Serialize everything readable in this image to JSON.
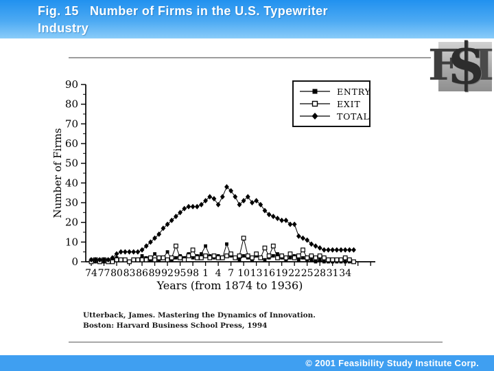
{
  "header": {
    "title_line1": "Fig. 15   Number of Firms in the U.S. Typewriter",
    "title_line2": "Industry"
  },
  "logo": {
    "letters": [
      "F",
      "$",
      "I"
    ]
  },
  "chart_data": {
    "type": "line",
    "title": "Number of Firms in the U.S. Typewriter Industry",
    "xlabel": "Years (from 1874 to 1936)",
    "ylabel": "Number of Firms",
    "x_start_year": 1874,
    "x_end_year": 1936,
    "x_tick_labels": [
      "74",
      "77",
      "80",
      "83",
      "86",
      "89",
      "92",
      "95",
      "98",
      "1",
      "4",
      "7",
      "10",
      "13",
      "16",
      "19",
      "22",
      "25",
      "28",
      "31",
      "34"
    ],
    "y_ticks": [
      0,
      10,
      20,
      30,
      40,
      50,
      60,
      70,
      80,
      90
    ],
    "ylim": [
      0,
      90
    ],
    "grid": false,
    "legend_position": "top-right",
    "line_color": "#000000",
    "series": [
      {
        "name": "ENTRY",
        "marker": "filled-square",
        "color": "#000000",
        "values": [
          1,
          0,
          1,
          0,
          1,
          1,
          2,
          1,
          1,
          0,
          1,
          1,
          3,
          2,
          1,
          4,
          1,
          2,
          5,
          1,
          2,
          3,
          2,
          4,
          2,
          3,
          4,
          8,
          3,
          2,
          3,
          2,
          9,
          3,
          2,
          1,
          3,
          2,
          1,
          3,
          2,
          1,
          2,
          3,
          4,
          2,
          1,
          2,
          3,
          1,
          2,
          1,
          1,
          0,
          1,
          0,
          0,
          0,
          0,
          0,
          0,
          0,
          0
        ]
      },
      {
        "name": "EXIT",
        "marker": "open-square",
        "color": "#000000",
        "values": [
          0,
          1,
          0,
          1,
          0,
          0,
          1,
          1,
          1,
          0,
          1,
          1,
          1,
          1,
          2,
          1,
          2,
          2,
          1,
          2,
          8,
          2,
          1,
          3,
          6,
          2,
          2,
          3,
          2,
          3,
          2,
          2,
          3,
          4,
          2,
          3,
          12,
          3,
          2,
          4,
          2,
          7,
          3,
          8,
          2,
          3,
          2,
          4,
          2,
          3,
          6,
          2,
          3,
          2,
          3,
          2,
          1,
          1,
          1,
          1,
          2,
          1,
          0
        ]
      },
      {
        "name": "TOTAL",
        "marker": "filled-diamond",
        "color": "#000000",
        "values": [
          1,
          1,
          1,
          1,
          1,
          2,
          4,
          5,
          5,
          5,
          5,
          5,
          6,
          8,
          10,
          12,
          14,
          17,
          19,
          21,
          23,
          25,
          27,
          28,
          28,
          28,
          29,
          31,
          33,
          32,
          29,
          33,
          38,
          36,
          33,
          29,
          31,
          33,
          30,
          31,
          29,
          26,
          24,
          23,
          22,
          21,
          21,
          19,
          19,
          13,
          12,
          11,
          9,
          8,
          7,
          6,
          6,
          6,
          6,
          6,
          6,
          6,
          6
        ]
      }
    ]
  },
  "citation": {
    "line1": "Utterback, James.  Mastering the Dynamics of Innovation.",
    "line2": "Boston: Harvard Business School Press, 1994"
  },
  "footer": {
    "copyright": "© 2001 Feasibility Study Institute Corp."
  },
  "colors": {
    "header_gradient_top": "#2191ef",
    "header_gradient_bottom": "#8accf9",
    "footer_blue": "#3f9ff1",
    "divider_gray": "#a8a8a8",
    "chart_ink": "#000000"
  }
}
